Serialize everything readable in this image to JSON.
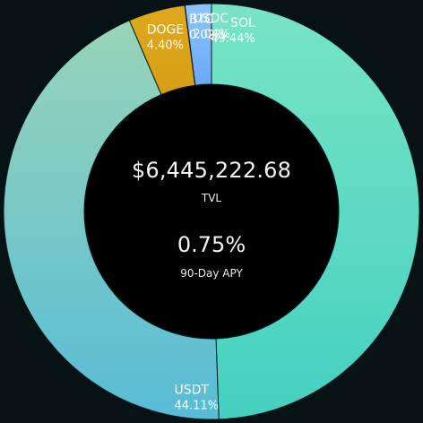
{
  "center": {
    "tvl_value": "$6,445,222.68",
    "tvl_label": "TVL",
    "apy_value": "0.75%",
    "apy_label": "90-Day APY"
  },
  "colors": {
    "background": "#071215",
    "hole": "#000000",
    "label_text": "#ffffff",
    "segment_border": "#0b1a1d"
  },
  "chart_data": {
    "type": "pie",
    "variant": "donut",
    "start": "top",
    "direction": "clockwise",
    "slices": [
      {
        "name": "SOL",
        "value": 49.44,
        "label": "49.44%",
        "color_from": "#78e4c4",
        "color_to": "#44d0c1"
      },
      {
        "name": "USDT",
        "value": 44.11,
        "label": "44.11%",
        "color_from": "#98d4b8",
        "color_to": "#58bcd6"
      },
      {
        "name": "DOGE",
        "value": 4.4,
        "label": "4.40%",
        "color_from": "#e0a81c",
        "color_to": "#d69e16"
      },
      {
        "name": "BTC",
        "value": 0.02,
        "label": "0.02%",
        "color_from": "#e8941a",
        "color_to": "#e8941a"
      },
      {
        "name": "USDC",
        "value": 2.04,
        "label": "2.04%",
        "color_from": "#8cc4ff",
        "color_to": "#6aa8f4"
      }
    ]
  }
}
